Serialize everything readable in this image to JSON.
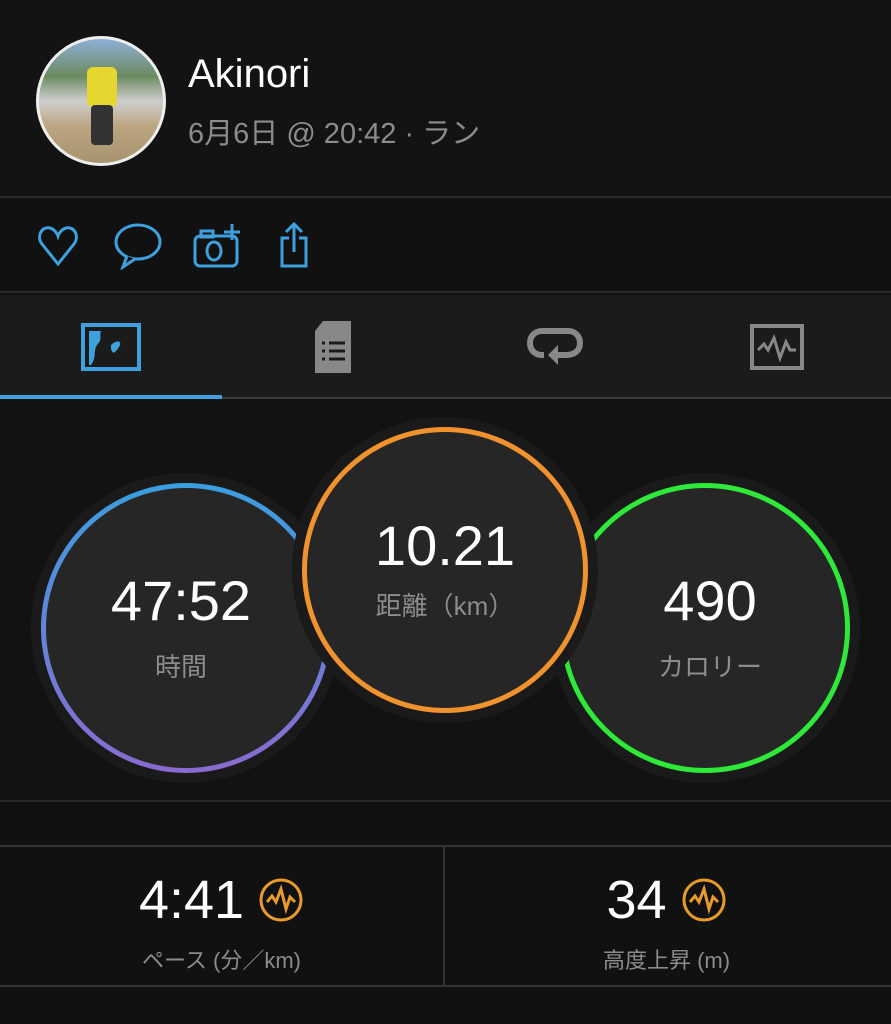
{
  "header": {
    "name": "Akinori",
    "subtitle": "6月6日 @ 20:42 · ラン"
  },
  "actions": [
    {
      "icon": "heart-icon"
    },
    {
      "icon": "comment-icon"
    },
    {
      "icon": "add-photo-icon"
    },
    {
      "icon": "share-icon"
    }
  ],
  "tabs": [
    {
      "icon": "map-icon",
      "active": true
    },
    {
      "icon": "details-icon"
    },
    {
      "icon": "laps-icon"
    },
    {
      "icon": "chart-icon"
    }
  ],
  "colors": {
    "accent": "#3ea0dd",
    "time_ring": [
      "#3b9ee0",
      "#8a6ad0"
    ],
    "distance_ring": "#f0922e",
    "calories_ring": "#2ee83a",
    "stat_icon": "#e99a2c"
  },
  "rings": {
    "time": {
      "value": "47:52",
      "label": "時間"
    },
    "distance": {
      "value": "10.21",
      "label": "距離（km）"
    },
    "calories": {
      "value": "490",
      "label": "カロリー"
    }
  },
  "stats": [
    {
      "value": "4:41",
      "label": "ペース (分／km)",
      "icon": "performance-icon"
    },
    {
      "value": "34",
      "label": "高度上昇 (m)",
      "icon": "performance-icon"
    }
  ]
}
